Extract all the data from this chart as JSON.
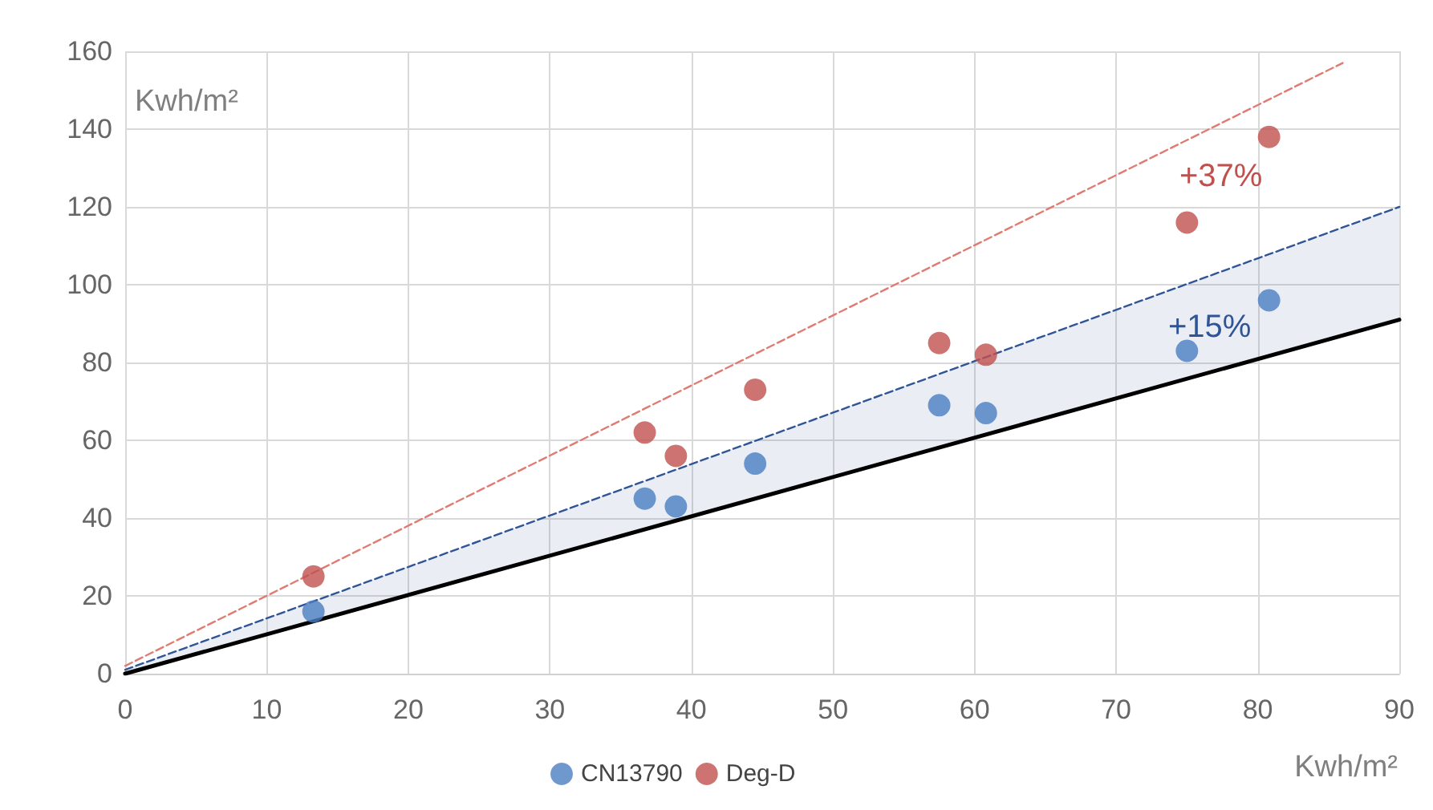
{
  "chart_data": {
    "type": "scatter",
    "xlabel": "Kwh/m²",
    "ylabel": "Kwh/m²",
    "xlim": [
      0,
      90
    ],
    "xticks": [
      0,
      10,
      20,
      30,
      40,
      50,
      60,
      70,
      80,
      90
    ],
    "ylim": [
      0,
      160
    ],
    "yticks": [
      0,
      20,
      40,
      60,
      80,
      100,
      120,
      140,
      160
    ],
    "grid": true,
    "legend": "bottom",
    "marker": "circle",
    "series": [
      {
        "name": "CN13790",
        "color": "#4a7ec2",
        "x": [
          13.3,
          36.7,
          38.9,
          44.5,
          57.5,
          60.8,
          75,
          80.8
        ],
        "values": [
          16,
          45,
          43,
          54,
          69,
          67,
          83,
          96
        ]
      },
      {
        "name": "Deg-D",
        "color": "#c0504d",
        "x": [
          13.3,
          36.7,
          38.9,
          44.5,
          57.5,
          60.8,
          75,
          80.8
        ],
        "values": [
          25,
          62,
          56,
          73,
          85,
          82,
          116,
          138
        ]
      },
      {
        "type": "line",
        "color": "#000000",
        "marker": "none",
        "line_style": "solid",
        "x": [
          0,
          90
        ],
        "values": [
          0,
          91
        ]
      },
      {
        "type": "line",
        "color": "#2f5597",
        "marker": "none",
        "line_style": "dashed",
        "x": [
          0,
          90
        ],
        "values": [
          1,
          120
        ],
        "lower": [
          0,
          91
        ],
        "upper": [
          1,
          120
        ]
      },
      {
        "type": "line",
        "color": "#e07b72",
        "marker": "none",
        "line_style": "dashed",
        "x": [
          0,
          86
        ],
        "values": [
          2,
          157
        ]
      }
    ],
    "annotations": [
      "+15%",
      "+37%"
    ]
  }
}
